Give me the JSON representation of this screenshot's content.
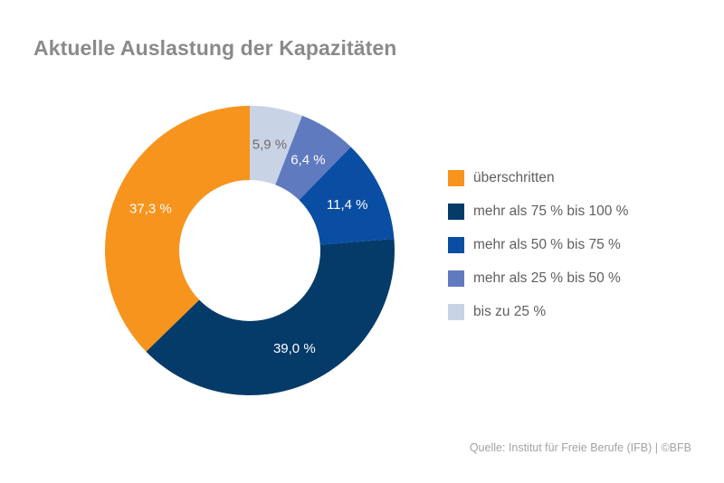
{
  "chart_data": {
    "type": "pie",
    "title": "Aktuelle Auslastung der Kapazitäten",
    "donut": true,
    "legend_position": "right",
    "slices": [
      {
        "label": "bis zu 25 %",
        "value": 5.9,
        "display": "5,9 %",
        "color": "#c9d3e6",
        "text_color": "#6d6d6d"
      },
      {
        "label": "mehr als 25 % bis 50 %",
        "value": 6.4,
        "display": "6,4 %",
        "color": "#5f7abf",
        "text_color": "#ffffff"
      },
      {
        "label": "mehr als 50 % bis 75 %",
        "value": 11.4,
        "display": "11,4 %",
        "color": "#0a4ea4",
        "text_color": "#ffffff"
      },
      {
        "label": "mehr als 75 % bis 100 %",
        "value": 39.0,
        "display": "39,0 %",
        "color": "#043b69",
        "text_color": "#ffffff"
      },
      {
        "label": "überschritten",
        "value": 37.3,
        "display": "37,3 %",
        "color": "#f7941d",
        "text_color": "#ffffff"
      }
    ],
    "legend": [
      {
        "label": "überschritten",
        "color": "#f7941d"
      },
      {
        "label": "mehr als 75 % bis 100 %",
        "color": "#043b69"
      },
      {
        "label": "mehr als 50 % bis 75 %",
        "color": "#0a4ea4"
      },
      {
        "label": "mehr als 25 % bis 50 %",
        "color": "#5f7abf"
      },
      {
        "label": "bis zu 25 %",
        "color": "#c9d3e6"
      }
    ]
  },
  "footer": {
    "source": "Quelle: Institut für Freie Berufe (IFB) | ©BFB"
  }
}
